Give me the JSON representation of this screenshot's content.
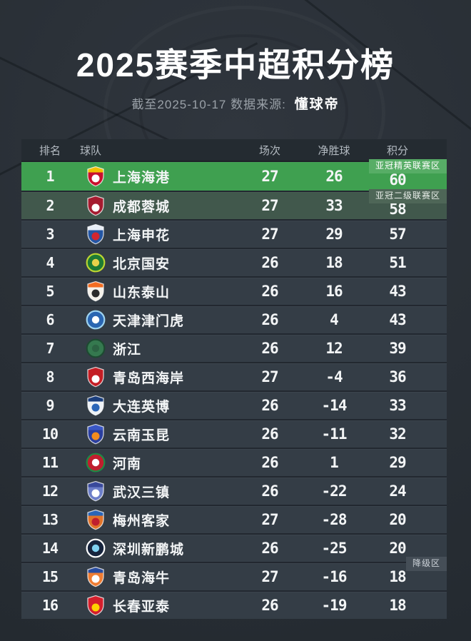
{
  "header": {
    "title": "2025赛季中超积分榜",
    "subtitle_prefix": "截至2025-10-17 数据来源:",
    "source_name": "懂球帝"
  },
  "zone_colors": {
    "acl_elite_row": "#3fa050",
    "acl_tier2_row": "#41584c",
    "default_row": "#343d46",
    "header_row": "#242b31"
  },
  "table": {
    "columns": [
      "排名",
      "球队",
      "场次",
      "净胜球",
      "积分"
    ],
    "rows": [
      {
        "rank": "1",
        "team": "上海海港",
        "played": "27",
        "gd": "26",
        "points": "60",
        "row_bg": "#3fa050",
        "zone_badge": {
          "label": "亚冠精英联赛区",
          "bg": "#57ad66",
          "color": "#ffffff"
        },
        "logo": {
          "name": "shanghai-port-crest-icon",
          "shape": "shield",
          "primary": "#c8102e",
          "secondary": "#f3c000",
          "accent": "#ffffff"
        }
      },
      {
        "rank": "2",
        "team": "成都蓉城",
        "played": "27",
        "gd": "33",
        "points": "58",
        "row_bg": "#41584c",
        "zone_badge": {
          "label": "亚冠二级联赛区",
          "bg": "#4e6657",
          "color": "#e9eeea"
        },
        "logo": {
          "name": "chengdu-rongcheng-crest-icon",
          "shape": "shield",
          "primary": "#a51c30",
          "secondary": "#a51c30",
          "accent": "#ffffff"
        }
      },
      {
        "rank": "3",
        "team": "上海申花",
        "played": "27",
        "gd": "29",
        "points": "57",
        "logo": {
          "name": "shanghai-shenhua-crest-icon",
          "shape": "shield",
          "primary": "#2456a4",
          "secondary": "#e8eef7",
          "accent": "#d22630"
        }
      },
      {
        "rank": "4",
        "team": "北京国安",
        "played": "26",
        "gd": "18",
        "points": "51",
        "logo": {
          "name": "beijing-guoan-crest-icon",
          "shape": "circle",
          "primary": "#1e7a34",
          "secondary": "#bcd531",
          "accent": "#e8d24a"
        }
      },
      {
        "rank": "5",
        "team": "山东泰山",
        "played": "26",
        "gd": "16",
        "points": "43",
        "logo": {
          "name": "shandong-taishan-crest-icon",
          "shape": "shield",
          "primary": "#f4f1ea",
          "secondary": "#f26c21",
          "accent": "#2b2b2b"
        }
      },
      {
        "rank": "6",
        "team": "天津津门虎",
        "played": "26",
        "gd": "4",
        "points": "43",
        "logo": {
          "name": "tianjin-jinmenhu-crest-icon",
          "shape": "circle",
          "primary": "#2a66b2",
          "secondary": "#9fd4f0",
          "accent": "#ffffff"
        }
      },
      {
        "rank": "7",
        "team": "浙江",
        "played": "26",
        "gd": "12",
        "points": "39",
        "logo": {
          "name": "zhejiang-crest-icon",
          "shape": "circle",
          "primary": "#35794f",
          "secondary": "#1d4a31",
          "accent": "#2c6343"
        }
      },
      {
        "rank": "8",
        "team": "青岛西海岸",
        "played": "27",
        "gd": "-4",
        "points": "36",
        "logo": {
          "name": "qingdao-west-coast-crest-icon",
          "shape": "shield",
          "primary": "#c41e25",
          "secondary": "#c41e25",
          "accent": "#ffffff"
        }
      },
      {
        "rank": "9",
        "team": "大连英博",
        "played": "26",
        "gd": "-14",
        "points": "33",
        "logo": {
          "name": "dalian-yingbo-crest-icon",
          "shape": "shield",
          "primary": "#eef2f6",
          "secondary": "#1b3f7e",
          "accent": "#2b66b8"
        }
      },
      {
        "rank": "10",
        "team": "云南玉昆",
        "played": "26",
        "gd": "-11",
        "points": "32",
        "logo": {
          "name": "yunnan-yukun-crest-icon",
          "shape": "shield",
          "primary": "#2b3f9e",
          "secondary": "#3a57c4",
          "accent": "#f28c1e"
        }
      },
      {
        "rank": "11",
        "team": "河南",
        "played": "26",
        "gd": "1",
        "points": "29",
        "logo": {
          "name": "henan-crest-icon",
          "shape": "circle",
          "primary": "#c01f2e",
          "secondary": "#1f8a44",
          "accent": "#ffffff"
        }
      },
      {
        "rank": "12",
        "team": "武汉三镇",
        "played": "26",
        "gd": "-22",
        "points": "24",
        "logo": {
          "name": "wuhan-three-towns-crest-icon",
          "shape": "shield",
          "primary": "#6d7fc9",
          "secondary": "#39499b",
          "accent": "#ffffff"
        }
      },
      {
        "rank": "13",
        "team": "梅州客家",
        "played": "27",
        "gd": "-28",
        "points": "20",
        "logo": {
          "name": "meizhou-hakka-crest-icon",
          "shape": "shield",
          "primary": "#e2742a",
          "secondary": "#2b66b8",
          "accent": "#c01f2e"
        }
      },
      {
        "rank": "14",
        "team": "深圳新鹏城",
        "played": "26",
        "gd": "-25",
        "points": "20",
        "logo": {
          "name": "shenzhen-peng-city-crest-icon",
          "shape": "circle",
          "primary": "#16243d",
          "secondary": "#ffffff",
          "accent": "#7fd0f0"
        }
      },
      {
        "rank": "15",
        "team": "青岛海牛",
        "played": "27",
        "gd": "-16",
        "points": "18",
        "zone_badge": {
          "label": "降级区",
          "bg": "#454e57",
          "color": "#ccd2d8"
        },
        "logo": {
          "name": "qingdao-hainiu-crest-icon",
          "shape": "shield",
          "primary": "#ef7d33",
          "secondary": "#2a4da0",
          "accent": "#ffffff"
        }
      },
      {
        "rank": "16",
        "team": "长春亚泰",
        "played": "26",
        "gd": "-19",
        "points": "18",
        "logo": {
          "name": "changchun-yatai-crest-icon",
          "shape": "shield",
          "primary": "#d41f2c",
          "secondary": "#d41f2c",
          "accent": "#ffd200"
        }
      }
    ]
  },
  "chart_data": {
    "type": "table",
    "title": "2025赛季中超积分榜",
    "subtitle": "截至2025-10-17 数据来源:懂球帝",
    "columns": [
      "排名",
      "球队",
      "场次",
      "净胜球",
      "积分"
    ],
    "rows": [
      [
        1,
        "上海海港",
        27,
        26,
        60
      ],
      [
        2,
        "成都蓉城",
        27,
        33,
        58
      ],
      [
        3,
        "上海申花",
        27,
        29,
        57
      ],
      [
        4,
        "北京国安",
        26,
        18,
        51
      ],
      [
        5,
        "山东泰山",
        26,
        16,
        43
      ],
      [
        6,
        "天津津门虎",
        26,
        4,
        43
      ],
      [
        7,
        "浙江",
        26,
        12,
        39
      ],
      [
        8,
        "青岛西海岸",
        27,
        -4,
        36
      ],
      [
        9,
        "大连英博",
        26,
        -14,
        33
      ],
      [
        10,
        "云南玉昆",
        26,
        -11,
        32
      ],
      [
        11,
        "河南",
        26,
        1,
        29
      ],
      [
        12,
        "武汉三镇",
        26,
        -22,
        24
      ],
      [
        13,
        "梅州客家",
        27,
        -28,
        20
      ],
      [
        14,
        "深圳新鹏城",
        26,
        -25,
        20
      ],
      [
        15,
        "青岛海牛",
        27,
        -16,
        18
      ],
      [
        16,
        "长春亚泰",
        26,
        -19,
        18
      ]
    ],
    "annotations": [
      "亚冠精英联赛区 (第1名)",
      "亚冠二级联赛区 (第2名)",
      "降级区 (第15-16名)"
    ]
  }
}
